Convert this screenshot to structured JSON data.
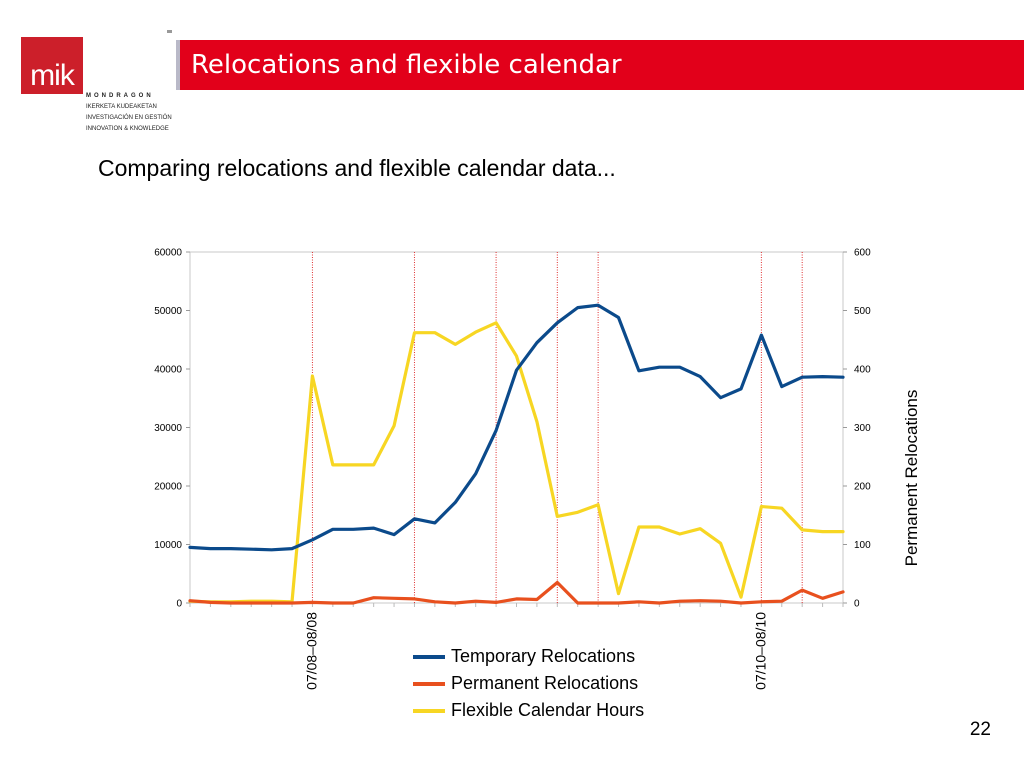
{
  "logo": {
    "mark": "mik",
    "brand": "MONDRAGON",
    "lines": [
      "IKERKETA KUDEAKETAN",
      "INVESTIGACIÓN EN GESTIÓN",
      "INNOVATION & KNOWLEDGE"
    ]
  },
  "slide": {
    "title": "Relocations and flexible calendar",
    "subtitle": "Comparing relocations and flexible calendar data...",
    "page_number": "22"
  },
  "colors": {
    "title_bar": "#e2001a",
    "logo": "#cc1f2a",
    "temporary": "#0b4a8b",
    "permanent": "#e8501e",
    "flexible": "#f7d623",
    "marker_lines": "#e03030"
  },
  "chart_data": {
    "type": "line",
    "n_points": 33,
    "left_axis": {
      "min": 0,
      "max": 60000,
      "ticks": [
        "0",
        "10000",
        "20000",
        "30000",
        "40000",
        "50000",
        "60000"
      ]
    },
    "right_axis": {
      "min": 0,
      "max": 600,
      "ticks": [
        "0",
        "100",
        "200",
        "300",
        "400",
        "500",
        "600"
      ],
      "label": "Permanent Relocations"
    },
    "category_labels": [
      {
        "index": 6,
        "text": "07/08–08/08"
      },
      {
        "index": 28,
        "text": "07/10–08/10"
      }
    ],
    "marker_lines": [
      6,
      11,
      15,
      18,
      20,
      28,
      30
    ],
    "series": [
      {
        "name": "Temporary Relocations",
        "axis": "left",
        "color": "#0b4a8b",
        "values": [
          9500,
          9300,
          9300,
          9200,
          9100,
          9300,
          10800,
          12600,
          12600,
          12800,
          11700,
          14400,
          13700,
          17200,
          22100,
          29500,
          39800,
          44500,
          47900,
          50500,
          50900,
          48800,
          39700,
          40300,
          40300,
          38700,
          35100,
          36600,
          45800,
          37000,
          38600,
          38700,
          38600
        ]
      },
      {
        "name": "Permanent Relocations",
        "axis": "right",
        "color": "#e8501e",
        "values": [
          4,
          1,
          0,
          0,
          0,
          0,
          1,
          0,
          0,
          9,
          8,
          7,
          2,
          0,
          3,
          1,
          7,
          6,
          35,
          0,
          0,
          0,
          2,
          0,
          3,
          4,
          3,
          0,
          2,
          3,
          22,
          8,
          19
        ]
      },
      {
        "name": "Flexible Calendar Hours",
        "axis": "right",
        "color": "#f7d623",
        "values": [
          3,
          2,
          2,
          3,
          3,
          2,
          388,
          236,
          236,
          236,
          303,
          462,
          462,
          442,
          463,
          479,
          422,
          310,
          148,
          155,
          168,
          16,
          130,
          130,
          118,
          127,
          102,
          10,
          165,
          162,
          125,
          122,
          122
        ]
      }
    ]
  }
}
